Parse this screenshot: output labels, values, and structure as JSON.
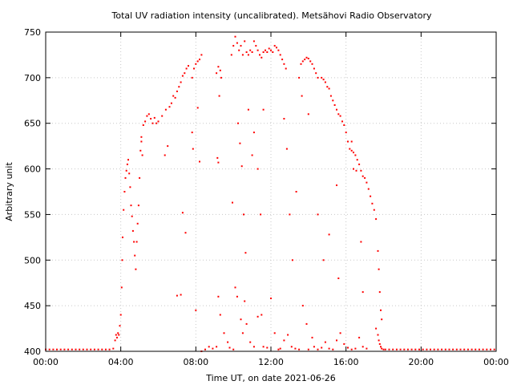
{
  "chart_data": {
    "type": "scatter",
    "title": "Total UV radiation intensity (uncalibrated). Metsähovi Radio Observatory",
    "xlabel": "Time UT, on date 2021-06-26",
    "ylabel": "Arbitrary unit",
    "xlim": [
      0,
      24
    ],
    "ylim": [
      400,
      750
    ],
    "x_ticks": [
      0,
      4,
      8,
      12,
      16,
      20,
      24
    ],
    "x_tick_labels": [
      "00:00",
      "04:00",
      "08:00",
      "12:00",
      "16:00",
      "20:00",
      "00:00"
    ],
    "y_ticks": [
      400,
      450,
      500,
      550,
      600,
      650,
      700,
      750
    ],
    "y_tick_labels": [
      "400",
      "450",
      "500",
      "550",
      "600",
      "650",
      "700",
      "750"
    ],
    "grid": true,
    "marker_color": "#ff0000",
    "series": [
      {
        "points": [
          [
            0.0,
            402
          ],
          [
            0.2,
            402
          ],
          [
            0.4,
            402
          ],
          [
            0.6,
            402
          ],
          [
            0.8,
            402
          ],
          [
            1.0,
            402
          ],
          [
            1.2,
            402
          ],
          [
            1.4,
            402
          ],
          [
            1.6,
            402
          ],
          [
            1.8,
            402
          ],
          [
            2.0,
            402
          ],
          [
            2.2,
            402
          ],
          [
            2.4,
            402
          ],
          [
            2.6,
            402
          ],
          [
            2.8,
            402
          ],
          [
            3.0,
            402
          ],
          [
            3.2,
            402
          ],
          [
            3.4,
            402
          ],
          [
            3.6,
            403
          ],
          [
            3.7,
            412
          ],
          [
            3.75,
            418
          ],
          [
            3.8,
            415
          ],
          [
            3.85,
            420
          ],
          [
            3.9,
            418
          ],
          [
            3.95,
            428
          ],
          [
            4.0,
            440
          ],
          [
            4.05,
            470
          ],
          [
            4.08,
            500
          ],
          [
            4.1,
            525
          ],
          [
            4.15,
            555
          ],
          [
            4.2,
            575
          ],
          [
            4.25,
            590
          ],
          [
            4.3,
            598
          ],
          [
            4.35,
            605
          ],
          [
            4.4,
            610
          ],
          [
            4.45,
            595
          ],
          [
            4.5,
            580
          ],
          [
            4.55,
            560
          ],
          [
            4.6,
            548
          ],
          [
            4.65,
            532
          ],
          [
            4.7,
            520
          ],
          [
            4.75,
            505
          ],
          [
            4.8,
            490
          ],
          [
            4.85,
            520
          ],
          [
            4.9,
            540
          ],
          [
            4.95,
            560
          ],
          [
            5.0,
            590
          ],
          [
            5.05,
            620
          ],
          [
            5.1,
            635
          ],
          [
            5.2,
            648
          ],
          [
            5.3,
            652
          ],
          [
            5.4,
            658
          ],
          [
            5.5,
            660
          ],
          [
            5.6,
            655
          ],
          [
            5.7,
            650
          ],
          [
            5.8,
            656
          ],
          [
            5.9,
            650
          ],
          [
            6.0,
            652
          ],
          [
            6.2,
            658
          ],
          [
            6.4,
            665
          ],
          [
            6.6,
            668
          ],
          [
            6.7,
            672
          ],
          [
            6.8,
            680
          ],
          [
            6.9,
            678
          ],
          [
            7.0,
            685
          ],
          [
            7.1,
            690
          ],
          [
            7.2,
            695
          ],
          [
            7.3,
            702
          ],
          [
            7.4,
            705
          ],
          [
            7.5,
            710
          ],
          [
            7.6,
            713
          ],
          [
            7.8,
            700
          ],
          [
            7.9,
            710
          ],
          [
            8.0,
            715
          ],
          [
            8.1,
            718
          ],
          [
            8.2,
            720
          ],
          [
            8.3,
            725
          ],
          [
            9.1,
            705
          ],
          [
            9.2,
            712
          ],
          [
            9.3,
            708
          ],
          [
            9.35,
            700
          ],
          [
            9.9,
            725
          ],
          [
            10.0,
            735
          ],
          [
            10.1,
            745
          ],
          [
            10.2,
            738
          ],
          [
            10.3,
            730
          ],
          [
            10.4,
            735
          ],
          [
            10.5,
            725
          ],
          [
            10.6,
            740
          ],
          [
            10.7,
            728
          ],
          [
            10.8,
            725
          ],
          [
            10.9,
            730
          ],
          [
            11.0,
            728
          ],
          [
            11.1,
            740
          ],
          [
            11.2,
            735
          ],
          [
            11.3,
            730
          ],
          [
            11.4,
            725
          ],
          [
            11.5,
            722
          ],
          [
            11.6,
            728
          ],
          [
            11.7,
            730
          ],
          [
            11.8,
            728
          ],
          [
            11.9,
            732
          ],
          [
            12.0,
            730
          ],
          [
            12.1,
            728
          ],
          [
            12.2,
            735
          ],
          [
            12.3,
            733
          ],
          [
            12.4,
            730
          ],
          [
            12.5,
            725
          ],
          [
            12.6,
            720
          ],
          [
            12.7,
            715
          ],
          [
            12.8,
            710
          ],
          [
            13.6,
            715
          ],
          [
            13.7,
            718
          ],
          [
            13.8,
            720
          ],
          [
            13.9,
            722
          ],
          [
            14.0,
            721
          ],
          [
            14.1,
            718
          ],
          [
            14.2,
            715
          ],
          [
            14.3,
            710
          ],
          [
            14.4,
            705
          ],
          [
            14.5,
            700
          ],
          [
            14.7,
            700
          ],
          [
            14.8,
            698
          ],
          [
            14.9,
            695
          ],
          [
            15.0,
            690
          ],
          [
            15.1,
            688
          ],
          [
            15.2,
            680
          ],
          [
            15.3,
            675
          ],
          [
            15.4,
            670
          ],
          [
            15.5,
            665
          ],
          [
            15.6,
            660
          ],
          [
            15.7,
            658
          ],
          [
            15.8,
            652
          ],
          [
            15.9,
            648
          ],
          [
            16.0,
            640
          ],
          [
            16.1,
            630
          ],
          [
            16.2,
            622
          ],
          [
            16.3,
            620
          ],
          [
            16.4,
            618
          ],
          [
            16.5,
            615
          ],
          [
            16.6,
            610
          ],
          [
            16.7,
            605
          ],
          [
            16.8,
            598
          ],
          [
            16.9,
            592
          ],
          [
            17.0,
            590
          ],
          [
            17.1,
            585
          ],
          [
            17.2,
            578
          ],
          [
            17.3,
            570
          ],
          [
            17.4,
            562
          ],
          [
            17.5,
            555
          ],
          [
            5.1,
            630
          ],
          [
            5.15,
            615
          ],
          [
            6.35,
            615
          ],
          [
            6.5,
            625
          ],
          [
            7.3,
            552
          ],
          [
            7.45,
            530
          ],
          [
            7.8,
            640
          ],
          [
            7.85,
            622
          ],
          [
            8.1,
            667
          ],
          [
            8.2,
            608
          ],
          [
            9.15,
            612
          ],
          [
            9.2,
            607
          ],
          [
            9.25,
            680
          ],
          [
            9.95,
            563
          ],
          [
            10.25,
            650
          ],
          [
            10.35,
            628
          ],
          [
            10.45,
            603
          ],
          [
            10.55,
            550
          ],
          [
            10.65,
            508
          ],
          [
            10.8,
            665
          ],
          [
            11.0,
            615
          ],
          [
            11.1,
            640
          ],
          [
            11.3,
            600
          ],
          [
            11.45,
            550
          ],
          [
            11.6,
            665
          ],
          [
            12.7,
            655
          ],
          [
            12.85,
            622
          ],
          [
            13.0,
            550
          ],
          [
            13.15,
            500
          ],
          [
            13.35,
            575
          ],
          [
            13.5,
            700
          ],
          [
            13.65,
            680
          ],
          [
            14.0,
            660
          ],
          [
            14.5,
            550
          ],
          [
            14.8,
            500
          ],
          [
            15.1,
            528
          ],
          [
            15.5,
            582
          ],
          [
            15.6,
            480
          ],
          [
            16.3,
            630
          ],
          [
            16.4,
            600
          ],
          [
            16.55,
            598
          ],
          [
            16.8,
            520
          ],
          [
            16.9,
            465
          ],
          [
            17.6,
            545
          ],
          [
            17.75,
            490
          ],
          [
            17.8,
            465
          ],
          [
            17.7,
            510
          ],
          [
            17.85,
            445
          ],
          [
            17.9,
            435
          ],
          [
            7.0,
            461
          ],
          [
            7.2,
            462
          ],
          [
            8.0,
            445
          ],
          [
            8.3,
            400
          ],
          [
            8.5,
            402
          ],
          [
            8.7,
            405
          ],
          [
            8.9,
            403
          ],
          [
            9.1,
            405
          ],
          [
            9.2,
            460
          ],
          [
            9.3,
            440
          ],
          [
            9.5,
            420
          ],
          [
            9.7,
            410
          ],
          [
            9.8,
            404
          ],
          [
            10.0,
            402
          ],
          [
            10.1,
            470
          ],
          [
            10.2,
            460
          ],
          [
            10.4,
            435
          ],
          [
            10.5,
            420
          ],
          [
            10.6,
            455
          ],
          [
            10.7,
            430
          ],
          [
            10.9,
            410
          ],
          [
            11.1,
            405
          ],
          [
            11.3,
            438
          ],
          [
            11.5,
            440
          ],
          [
            11.6,
            405
          ],
          [
            11.8,
            404
          ],
          [
            12.0,
            458
          ],
          [
            12.2,
            420
          ],
          [
            12.4,
            402
          ],
          [
            12.5,
            403
          ],
          [
            12.7,
            412
          ],
          [
            12.9,
            418
          ],
          [
            13.1,
            405
          ],
          [
            13.3,
            403
          ],
          [
            13.5,
            402
          ],
          [
            13.7,
            450
          ],
          [
            13.9,
            430
          ],
          [
            14.0,
            402
          ],
          [
            14.2,
            415
          ],
          [
            14.3,
            405
          ],
          [
            14.5,
            402
          ],
          [
            14.7,
            404
          ],
          [
            14.9,
            410
          ],
          [
            15.1,
            403
          ],
          [
            15.3,
            402
          ],
          [
            15.5,
            412
          ],
          [
            15.7,
            420
          ],
          [
            15.9,
            408
          ],
          [
            16.1,
            404
          ],
          [
            16.3,
            402
          ],
          [
            16.5,
            403
          ],
          [
            16.7,
            415
          ],
          [
            16.9,
            405
          ],
          [
            17.1,
            403
          ],
          [
            17.6,
            425
          ],
          [
            17.7,
            418
          ],
          [
            17.75,
            412
          ],
          [
            17.8,
            408
          ],
          [
            17.85,
            405
          ],
          [
            17.9,
            403
          ],
          [
            18.0,
            402
          ],
          [
            18.1,
            402
          ],
          [
            18.3,
            402
          ],
          [
            18.5,
            402
          ],
          [
            18.7,
            402
          ],
          [
            18.9,
            402
          ],
          [
            19.1,
            402
          ],
          [
            19.3,
            402
          ],
          [
            19.5,
            402
          ],
          [
            19.7,
            402
          ],
          [
            19.9,
            402
          ],
          [
            20.1,
            402
          ],
          [
            20.3,
            402
          ],
          [
            20.5,
            402
          ],
          [
            20.7,
            402
          ],
          [
            20.9,
            402
          ],
          [
            21.1,
            402
          ],
          [
            21.3,
            402
          ],
          [
            21.5,
            402
          ],
          [
            21.7,
            402
          ],
          [
            21.9,
            402
          ],
          [
            22.1,
            402
          ],
          [
            22.3,
            402
          ],
          [
            22.5,
            402
          ],
          [
            22.7,
            402
          ],
          [
            22.9,
            402
          ],
          [
            23.1,
            402
          ],
          [
            23.3,
            402
          ],
          [
            23.5,
            402
          ],
          [
            23.7,
            402
          ],
          [
            23.9,
            402
          ]
        ]
      }
    ]
  }
}
